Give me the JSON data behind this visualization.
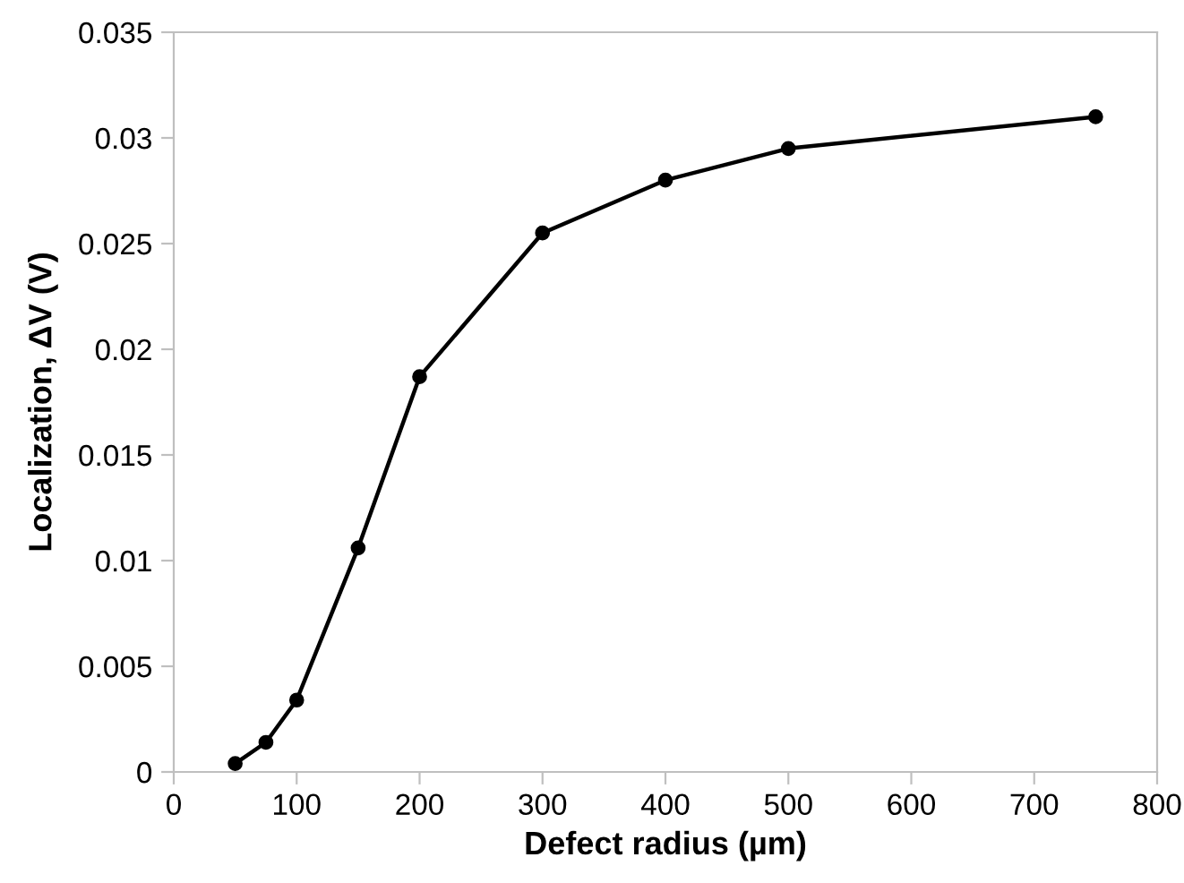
{
  "chart_data": {
    "type": "line",
    "xlabel": "Defect radius (µm)",
    "ylabel": "Localization, ΔV (V)",
    "x": [
      50,
      75,
      100,
      150,
      200,
      300,
      400,
      500,
      750
    ],
    "series": [
      {
        "color": "#000000",
        "values": [
          0.0004,
          0.0014,
          0.0034,
          0.0106,
          0.0187,
          0.0255,
          0.028,
          0.0295,
          0.031
        ]
      }
    ],
    "xlim": [
      0,
      800
    ],
    "xticks": [
      0,
      100,
      200,
      300,
      400,
      500,
      600,
      700,
      800
    ],
    "ylim": [
      0,
      0.035
    ],
    "yticks": [
      {
        "value": 0,
        "label": "0"
      },
      0.005,
      0.01,
      0.015,
      0.02,
      0.025,
      {
        "value": 0.03,
        "label": "0.03"
      },
      0.035
    ],
    "grid": false,
    "marker": "circle",
    "line_style": "solid"
  }
}
